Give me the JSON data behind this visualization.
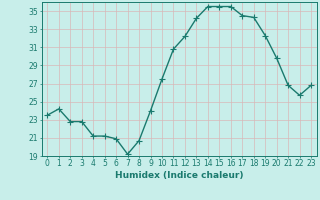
{
  "x": [
    0,
    1,
    2,
    3,
    4,
    5,
    6,
    7,
    8,
    9,
    10,
    11,
    12,
    13,
    14,
    15,
    16,
    17,
    18,
    19,
    20,
    21,
    22,
    23
  ],
  "y": [
    23.5,
    24.2,
    22.8,
    22.8,
    21.2,
    21.2,
    20.9,
    19.2,
    20.7,
    24.0,
    27.5,
    30.8,
    32.2,
    34.2,
    35.5,
    35.5,
    35.5,
    34.5,
    34.3,
    32.3,
    29.8,
    26.8,
    25.7,
    26.8
  ],
  "line_color": "#1a7a6e",
  "marker": "+",
  "marker_size": 4,
  "background_color": "#c8eeea",
  "grid_color_major": "#d8b8b8",
  "grid_color_minor": "#d8b8b8",
  "xlabel": "Humidex (Indice chaleur)",
  "ylim": [
    19,
    36
  ],
  "xlim": [
    -0.5,
    23.5
  ],
  "yticks": [
    19,
    21,
    23,
    25,
    27,
    29,
    31,
    33,
    35
  ],
  "xticks": [
    0,
    1,
    2,
    3,
    4,
    5,
    6,
    7,
    8,
    9,
    10,
    11,
    12,
    13,
    14,
    15,
    16,
    17,
    18,
    19,
    20,
    21,
    22,
    23
  ],
  "tick_fontsize": 5.5,
  "label_fontsize": 6.5,
  "line_width": 1.0,
  "marker_edge_width": 0.8
}
